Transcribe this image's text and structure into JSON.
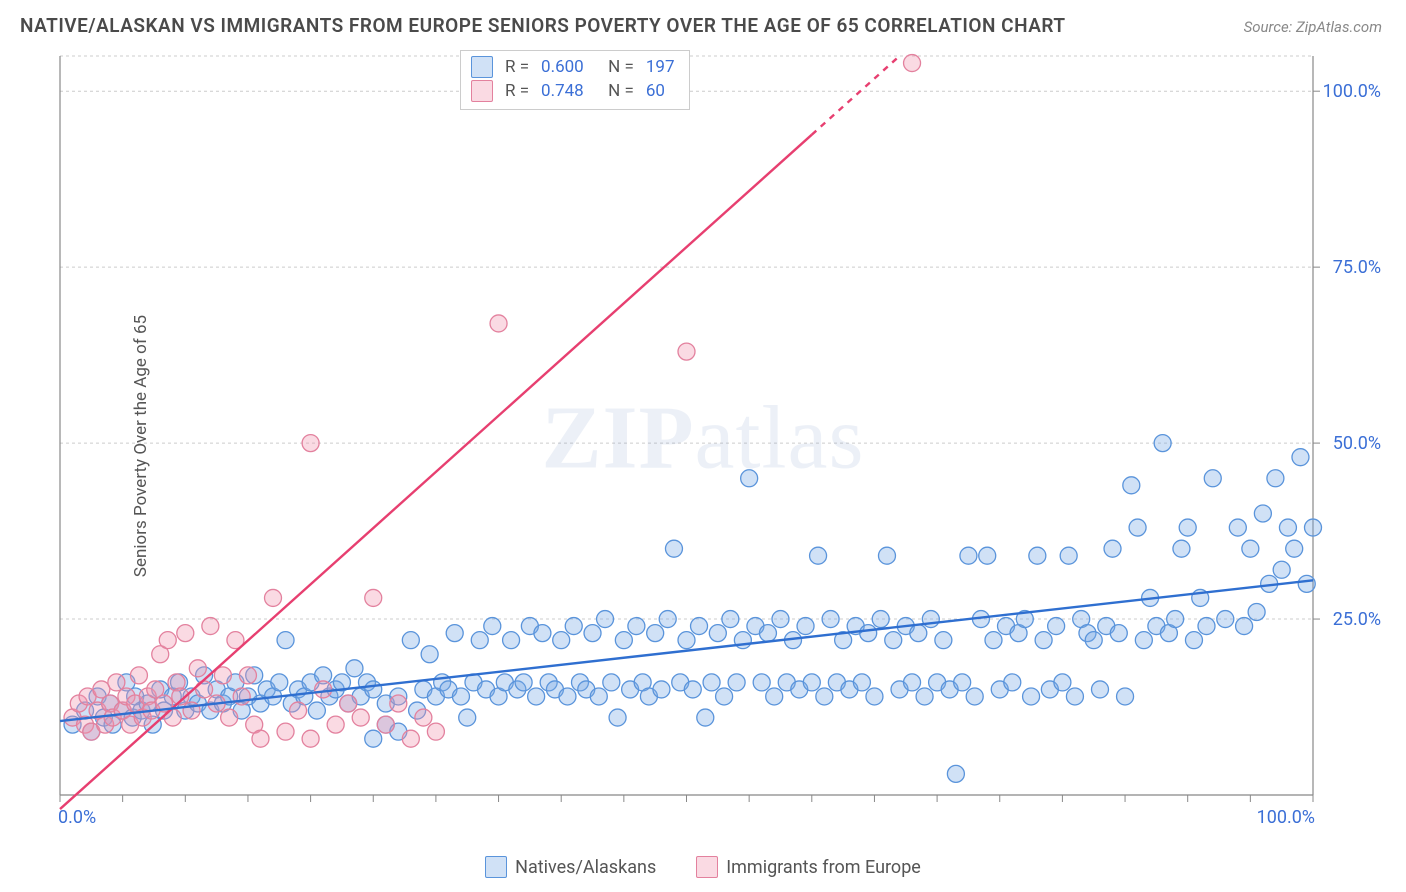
{
  "title": "NATIVE/ALASKAN VS IMMIGRANTS FROM EUROPE SENIORS POVERTY OVER THE AGE OF 65 CORRELATION CHART",
  "source_label": "Source: ZipAtlas.com",
  "ylabel": "Seniors Poverty Over the Age of 65",
  "watermark": "ZIPatlas",
  "chart": {
    "type": "scatter-with-regression",
    "background_color": "#ffffff",
    "grid_color": "#cccccc",
    "axis_color": "#888888",
    "xlim": [
      0,
      100
    ],
    "ylim": [
      0,
      105
    ],
    "ytick_values": [
      25,
      50,
      75,
      100
    ],
    "ytick_labels": [
      "25.0%",
      "50.0%",
      "75.0%",
      "100.0%"
    ],
    "xtick_major": [
      0,
      100
    ],
    "xtick_labels": [
      "0.0%",
      "100.0%"
    ],
    "xtick_minor_step": 5,
    "marker_radius": 8.5,
    "marker_stroke_width": 1.3,
    "line_width": 2.4
  },
  "series": [
    {
      "id": "natives",
      "label": "Natives/Alaskans",
      "fill": "rgba(120,170,230,0.35)",
      "stroke": "#5a94db",
      "r": 0.6,
      "n": 197,
      "trend": {
        "x1": 0,
        "y1": 10.5,
        "x2": 100,
        "y2": 30.5,
        "color": "#2f6fd0"
      },
      "points": [
        [
          1,
          10
        ],
        [
          2,
          12
        ],
        [
          2.5,
          9
        ],
        [
          3,
          14
        ],
        [
          3.5,
          11
        ],
        [
          4,
          13
        ],
        [
          4.2,
          10
        ],
        [
          5,
          12
        ],
        [
          5.3,
          16
        ],
        [
          5.8,
          11
        ],
        [
          6,
          14
        ],
        [
          6.5,
          12
        ],
        [
          7,
          13
        ],
        [
          7.4,
          10
        ],
        [
          8,
          15
        ],
        [
          8.3,
          12
        ],
        [
          9,
          14
        ],
        [
          9.5,
          16
        ],
        [
          10,
          12
        ],
        [
          10.5,
          14
        ],
        [
          11,
          13
        ],
        [
          11.5,
          17
        ],
        [
          12,
          12
        ],
        [
          12.5,
          15
        ],
        [
          13,
          13
        ],
        [
          13.5,
          14
        ],
        [
          14,
          16
        ],
        [
          14.5,
          12
        ],
        [
          15,
          14
        ],
        [
          15.5,
          17
        ],
        [
          16,
          13
        ],
        [
          16.5,
          15
        ],
        [
          17,
          14
        ],
        [
          17.5,
          16
        ],
        [
          18,
          22
        ],
        [
          18.5,
          13
        ],
        [
          19,
          15
        ],
        [
          19.5,
          14
        ],
        [
          20,
          16
        ],
        [
          20.5,
          12
        ],
        [
          21,
          17
        ],
        [
          21.5,
          14
        ],
        [
          22,
          15
        ],
        [
          22.5,
          16
        ],
        [
          23,
          13
        ],
        [
          23.5,
          18
        ],
        [
          24,
          14
        ],
        [
          24.5,
          16
        ],
        [
          25,
          15
        ],
        [
          25,
          8
        ],
        [
          26,
          13
        ],
        [
          26,
          10
        ],
        [
          27,
          14
        ],
        [
          27,
          9
        ],
        [
          28,
          22
        ],
        [
          28.5,
          12
        ],
        [
          29,
          15
        ],
        [
          29.5,
          20
        ],
        [
          30,
          14
        ],
        [
          30.5,
          16
        ],
        [
          31,
          15
        ],
        [
          31.5,
          23
        ],
        [
          32,
          14
        ],
        [
          32.5,
          11
        ],
        [
          33,
          16
        ],
        [
          33.5,
          22
        ],
        [
          34,
          15
        ],
        [
          34.5,
          24
        ],
        [
          35,
          14
        ],
        [
          35.5,
          16
        ],
        [
          36,
          22
        ],
        [
          36.5,
          15
        ],
        [
          37,
          16
        ],
        [
          37.5,
          24
        ],
        [
          38,
          14
        ],
        [
          38.5,
          23
        ],
        [
          39,
          16
        ],
        [
          39.5,
          15
        ],
        [
          40,
          22
        ],
        [
          40.5,
          14
        ],
        [
          41,
          24
        ],
        [
          41.5,
          16
        ],
        [
          42,
          15
        ],
        [
          42.5,
          23
        ],
        [
          43,
          14
        ],
        [
          43.5,
          25
        ],
        [
          44,
          16
        ],
        [
          44.5,
          11
        ],
        [
          45,
          22
        ],
        [
          45.5,
          15
        ],
        [
          46,
          24
        ],
        [
          46.5,
          16
        ],
        [
          47,
          14
        ],
        [
          47.5,
          23
        ],
        [
          48,
          15
        ],
        [
          48.5,
          25
        ],
        [
          49,
          35
        ],
        [
          49.5,
          16
        ],
        [
          50,
          22
        ],
        [
          50.5,
          15
        ],
        [
          51,
          24
        ],
        [
          51.5,
          11
        ],
        [
          52,
          16
        ],
        [
          52.5,
          23
        ],
        [
          53,
          14
        ],
        [
          53.5,
          25
        ],
        [
          54,
          16
        ],
        [
          54.5,
          22
        ],
        [
          55,
          45
        ],
        [
          55.5,
          24
        ],
        [
          56,
          16
        ],
        [
          56.5,
          23
        ],
        [
          57,
          14
        ],
        [
          57.5,
          25
        ],
        [
          58,
          16
        ],
        [
          58.5,
          22
        ],
        [
          59,
          15
        ],
        [
          59.5,
          24
        ],
        [
          60,
          16
        ],
        [
          60.5,
          34
        ],
        [
          61,
          14
        ],
        [
          61.5,
          25
        ],
        [
          62,
          16
        ],
        [
          62.5,
          22
        ],
        [
          63,
          15
        ],
        [
          63.5,
          24
        ],
        [
          64,
          16
        ],
        [
          64.5,
          23
        ],
        [
          65,
          14
        ],
        [
          65.5,
          25
        ],
        [
          66,
          34
        ],
        [
          66.5,
          22
        ],
        [
          67,
          15
        ],
        [
          67.5,
          24
        ],
        [
          68,
          16
        ],
        [
          68.5,
          23
        ],
        [
          69,
          14
        ],
        [
          69.5,
          25
        ],
        [
          70,
          16
        ],
        [
          70.5,
          22
        ],
        [
          71,
          15
        ],
        [
          71.5,
          3
        ],
        [
          72,
          16
        ],
        [
          72.5,
          34
        ],
        [
          73,
          14
        ],
        [
          73.5,
          25
        ],
        [
          74,
          34
        ],
        [
          74.5,
          22
        ],
        [
          75,
          15
        ],
        [
          75.5,
          24
        ],
        [
          76,
          16
        ],
        [
          76.5,
          23
        ],
        [
          77,
          25
        ],
        [
          77.5,
          14
        ],
        [
          78,
          34
        ],
        [
          78.5,
          22
        ],
        [
          79,
          15
        ],
        [
          79.5,
          24
        ],
        [
          80,
          16
        ],
        [
          80.5,
          34
        ],
        [
          81,
          14
        ],
        [
          81.5,
          25
        ],
        [
          82,
          23
        ],
        [
          82.5,
          22
        ],
        [
          83,
          15
        ],
        [
          83.5,
          24
        ],
        [
          84,
          35
        ],
        [
          84.5,
          23
        ],
        [
          85,
          14
        ],
        [
          85.5,
          44
        ],
        [
          86,
          38
        ],
        [
          86.5,
          22
        ],
        [
          87,
          28
        ],
        [
          87.5,
          24
        ],
        [
          88,
          50
        ],
        [
          88.5,
          23
        ],
        [
          89,
          25
        ],
        [
          89.5,
          35
        ],
        [
          90,
          38
        ],
        [
          90.5,
          22
        ],
        [
          91,
          28
        ],
        [
          91.5,
          24
        ],
        [
          92,
          45
        ],
        [
          93,
          25
        ],
        [
          94,
          38
        ],
        [
          94.5,
          24
        ],
        [
          95,
          35
        ],
        [
          95.5,
          26
        ],
        [
          96,
          40
        ],
        [
          96.5,
          30
        ],
        [
          97,
          45
        ],
        [
          97.5,
          32
        ],
        [
          98,
          38
        ],
        [
          98.5,
          35
        ],
        [
          99,
          48
        ],
        [
          99.5,
          30
        ],
        [
          100,
          38
        ]
      ]
    },
    {
      "id": "immigrants",
      "label": "Immigrants from Europe",
      "fill": "rgba(240,150,175,0.35)",
      "stroke": "#e3819e",
      "r": 0.748,
      "n": 60,
      "trend": {
        "x1": 0,
        "y1": -2,
        "x2": 67,
        "y2": 105,
        "color": "#e73f70",
        "dash_from_x": 60
      },
      "points": [
        [
          1,
          11
        ],
        [
          1.5,
          13
        ],
        [
          2,
          10
        ],
        [
          2.2,
          14
        ],
        [
          2.5,
          9
        ],
        [
          3,
          12
        ],
        [
          3.3,
          15
        ],
        [
          3.6,
          10
        ],
        [
          4,
          13
        ],
        [
          4.2,
          11
        ],
        [
          4.5,
          16
        ],
        [
          5,
          12
        ],
        [
          5.3,
          14
        ],
        [
          5.6,
          10
        ],
        [
          6,
          13
        ],
        [
          6.3,
          17
        ],
        [
          6.6,
          11
        ],
        [
          7,
          14
        ],
        [
          7.3,
          12
        ],
        [
          7.6,
          15
        ],
        [
          8,
          20
        ],
        [
          8.3,
          13
        ],
        [
          8.6,
          22
        ],
        [
          9,
          11
        ],
        [
          9.3,
          16
        ],
        [
          9.6,
          14
        ],
        [
          10,
          23
        ],
        [
          10.5,
          12
        ],
        [
          11,
          18
        ],
        [
          11.5,
          15
        ],
        [
          12,
          24
        ],
        [
          12.5,
          13
        ],
        [
          13,
          17
        ],
        [
          13.5,
          11
        ],
        [
          14,
          22
        ],
        [
          14.5,
          14
        ],
        [
          15,
          17
        ],
        [
          15.5,
          10
        ],
        [
          16,
          8
        ],
        [
          17,
          28
        ],
        [
          18,
          9
        ],
        [
          19,
          12
        ],
        [
          20,
          50
        ],
        [
          20,
          8
        ],
        [
          21,
          15
        ],
        [
          22,
          10
        ],
        [
          23,
          13
        ],
        [
          24,
          11
        ],
        [
          25,
          28
        ],
        [
          26,
          10
        ],
        [
          27,
          13
        ],
        [
          28,
          8
        ],
        [
          29,
          11
        ],
        [
          30,
          9
        ],
        [
          35,
          67
        ],
        [
          37,
          104
        ],
        [
          50,
          63
        ],
        [
          68,
          104
        ]
      ]
    }
  ],
  "stats_box": {
    "rows": [
      {
        "swatch_fill": "rgba(120,170,230,0.35)",
        "swatch_stroke": "#5a94db",
        "r": "0.600",
        "n": "197"
      },
      {
        "swatch_fill": "rgba(240,150,175,0.35)",
        "swatch_stroke": "#e3819e",
        "r": "0.748",
        "n": "60"
      }
    ]
  },
  "bottom_legend": [
    {
      "swatch_fill": "rgba(120,170,230,0.35)",
      "swatch_stroke": "#5a94db",
      "label": "Natives/Alaskans"
    },
    {
      "swatch_fill": "rgba(240,150,175,0.35)",
      "swatch_stroke": "#e3819e",
      "label": "Immigrants from Europe"
    }
  ]
}
